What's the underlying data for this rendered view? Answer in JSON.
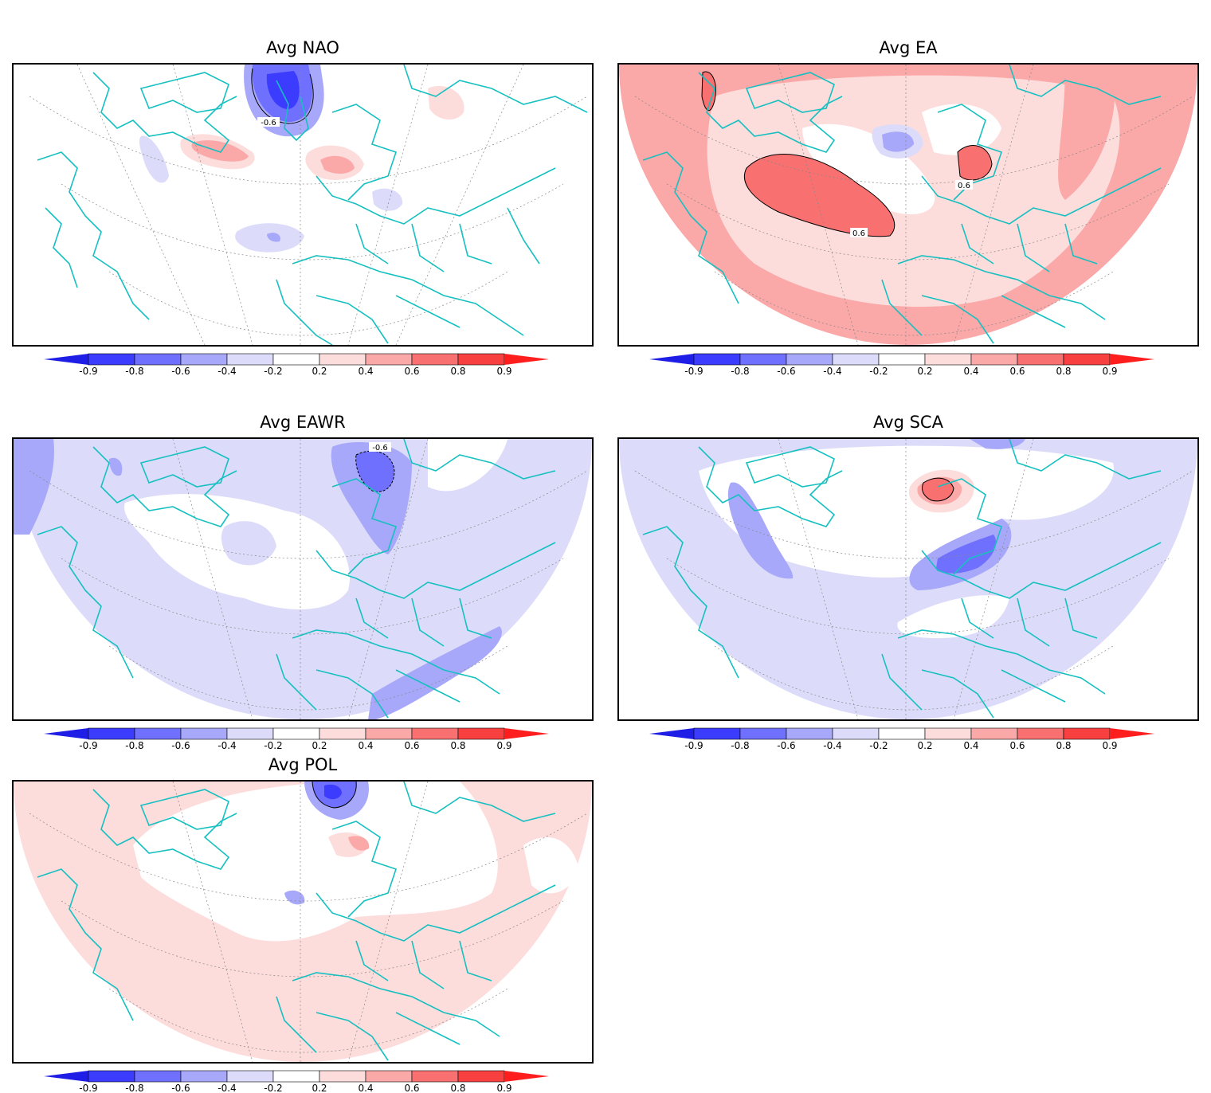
{
  "panels": [
    {
      "id": "nao",
      "title": "Avg  NAO",
      "contour_labels": [
        "-0.6"
      ]
    },
    {
      "id": "ea",
      "title": "Avg  EA",
      "contour_labels": [
        "0.6",
        "0.6"
      ]
    },
    {
      "id": "eawr",
      "title": "Avg  EAWR",
      "contour_labels": [
        "-0.6"
      ]
    },
    {
      "id": "sca",
      "title": "Avg  SCA",
      "contour_labels": []
    },
    {
      "id": "pol",
      "title": "Avg  POL",
      "contour_labels": []
    }
  ],
  "colorbar": {
    "tick_labels": [
      "-0.9",
      "-0.8",
      "-0.6",
      "-0.4",
      "-0.2",
      "0.2",
      "0.4",
      "0.6",
      "0.8",
      "0.9"
    ],
    "colors": [
      "#1e1ee6",
      "#3c3cff",
      "#7070ff",
      "#a8a8fa",
      "#dcdcfa",
      "#ffffff",
      "#fddcdc",
      "#fba8a8",
      "#f87070",
      "#f84040",
      "#ff1e1e"
    ]
  },
  "colors": {
    "coastline": "#16c0c0",
    "frame": "#000000",
    "neg_light": "#dcdcfa",
    "neg_mid": "#a8a8fa",
    "neg_strong": "#7070ff",
    "neg_dark": "#3c3cff",
    "pos_light": "#fddcdc",
    "pos_mid": "#fba8a8",
    "pos_strong": "#f87070"
  }
}
